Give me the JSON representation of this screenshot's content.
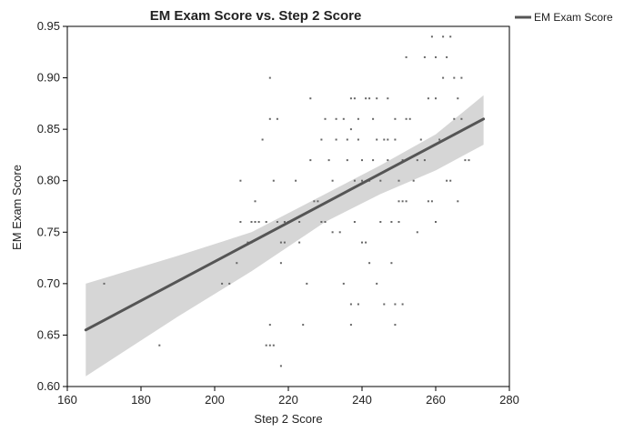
{
  "chart_data": {
    "type": "scatter",
    "title": "EM Exam Score vs. Step 2 Score",
    "xlabel": "Step 2 Score",
    "ylabel": "EM Exam Score",
    "xlim": [
      160,
      280
    ],
    "ylim": [
      0.6,
      0.95
    ],
    "xticks": [
      "160",
      "180",
      "200",
      "220",
      "240",
      "260",
      "280"
    ],
    "yticks": [
      "0.60",
      "0.65",
      "0.70",
      "0.75",
      "0.80",
      "0.85",
      "0.90",
      "0.95"
    ],
    "grid": false,
    "legend": {
      "position": "top-right",
      "entries": [
        "EM Exam Score"
      ]
    },
    "colors": {
      "points": "#666666",
      "fit_line": "#555555",
      "confidence_band": "#d6d6d6",
      "frame": "#000000"
    },
    "series": [
      {
        "kind": "points",
        "points": [
          [
            170,
            0.7
          ],
          [
            185,
            0.64
          ],
          [
            202,
            0.7
          ],
          [
            204,
            0.7
          ],
          [
            206,
            0.72
          ],
          [
            207,
            0.76
          ],
          [
            207,
            0.8
          ],
          [
            209,
            0.74
          ],
          [
            210,
            0.74
          ],
          [
            210,
            0.76
          ],
          [
            211,
            0.78
          ],
          [
            211,
            0.76
          ],
          [
            212,
            0.76
          ],
          [
            213,
            0.84
          ],
          [
            214,
            0.76
          ],
          [
            214,
            0.64
          ],
          [
            215,
            0.66
          ],
          [
            215,
            0.64
          ],
          [
            215,
            0.9
          ],
          [
            215,
            0.86
          ],
          [
            216,
            0.64
          ],
          [
            216,
            0.8
          ],
          [
            217,
            0.86
          ],
          [
            217,
            0.76
          ],
          [
            218,
            0.74
          ],
          [
            218,
            0.72
          ],
          [
            218,
            0.62
          ],
          [
            219,
            0.74
          ],
          [
            219,
            0.76
          ],
          [
            220,
            0.76
          ],
          [
            222,
            0.8
          ],
          [
            223,
            0.76
          ],
          [
            223,
            0.74
          ],
          [
            224,
            0.66
          ],
          [
            225,
            0.7
          ],
          [
            226,
            0.88
          ],
          [
            226,
            0.82
          ],
          [
            227,
            0.78
          ],
          [
            228,
            0.78
          ],
          [
            229,
            0.76
          ],
          [
            229,
            0.84
          ],
          [
            230,
            0.76
          ],
          [
            230,
            0.86
          ],
          [
            231,
            0.82
          ],
          [
            232,
            0.8
          ],
          [
            232,
            0.75
          ],
          [
            233,
            0.86
          ],
          [
            233,
            0.84
          ],
          [
            234,
            0.75
          ],
          [
            235,
            0.86
          ],
          [
            235,
            0.7
          ],
          [
            236,
            0.82
          ],
          [
            236,
            0.84
          ],
          [
            237,
            0.66
          ],
          [
            237,
            0.68
          ],
          [
            237,
            0.85
          ],
          [
            237,
            0.88
          ],
          [
            238,
            0.88
          ],
          [
            238,
            0.76
          ],
          [
            238,
            0.8
          ],
          [
            239,
            0.68
          ],
          [
            239,
            0.84
          ],
          [
            239,
            0.86
          ],
          [
            240,
            0.8
          ],
          [
            240,
            0.82
          ],
          [
            240,
            0.74
          ],
          [
            241,
            0.74
          ],
          [
            241,
            0.88
          ],
          [
            242,
            0.88
          ],
          [
            242,
            0.8
          ],
          [
            242,
            0.72
          ],
          [
            243,
            0.82
          ],
          [
            243,
            0.86
          ],
          [
            244,
            0.88
          ],
          [
            244,
            0.84
          ],
          [
            244,
            0.7
          ],
          [
            245,
            0.76
          ],
          [
            245,
            0.8
          ],
          [
            246,
            0.84
          ],
          [
            246,
            0.68
          ],
          [
            247,
            0.84
          ],
          [
            247,
            0.82
          ],
          [
            247,
            0.88
          ],
          [
            248,
            0.76
          ],
          [
            248,
            0.72
          ],
          [
            249,
            0.86
          ],
          [
            249,
            0.84
          ],
          [
            249,
            0.66
          ],
          [
            249,
            0.68
          ],
          [
            250,
            0.78
          ],
          [
            250,
            0.76
          ],
          [
            250,
            0.8
          ],
          [
            251,
            0.82
          ],
          [
            251,
            0.78
          ],
          [
            251,
            0.68
          ],
          [
            252,
            0.86
          ],
          [
            252,
            0.92
          ],
          [
            252,
            0.78
          ],
          [
            253,
            0.86
          ],
          [
            254,
            0.8
          ],
          [
            255,
            0.75
          ],
          [
            255,
            0.82
          ],
          [
            256,
            0.84
          ],
          [
            257,
            0.82
          ],
          [
            257,
            0.92
          ],
          [
            258,
            0.88
          ],
          [
            258,
            0.78
          ],
          [
            259,
            0.94
          ],
          [
            259,
            0.78
          ],
          [
            260,
            0.88
          ],
          [
            260,
            0.92
          ],
          [
            260,
            0.76
          ],
          [
            261,
            0.84
          ],
          [
            262,
            0.9
          ],
          [
            262,
            0.94
          ],
          [
            263,
            0.92
          ],
          [
            263,
            0.8
          ],
          [
            264,
            0.94
          ],
          [
            264,
            0.8
          ],
          [
            265,
            0.86
          ],
          [
            265,
            0.9
          ],
          [
            266,
            0.88
          ],
          [
            266,
            0.78
          ],
          [
            267,
            0.9
          ],
          [
            267,
            0.86
          ],
          [
            268,
            0.82
          ],
          [
            269,
            0.82
          ]
        ]
      },
      {
        "name": "EM Exam Score",
        "kind": "fit_line",
        "x": [
          165,
          273
        ],
        "y": [
          0.655,
          0.86
        ]
      },
      {
        "kind": "confidence_band",
        "x": [
          165,
          190,
          210,
          230,
          245,
          260,
          273
        ],
        "upper": [
          0.7,
          0.727,
          0.75,
          0.787,
          0.815,
          0.845,
          0.883
        ],
        "lower": [
          0.61,
          0.668,
          0.712,
          0.76,
          0.787,
          0.81,
          0.835
        ]
      }
    ]
  }
}
